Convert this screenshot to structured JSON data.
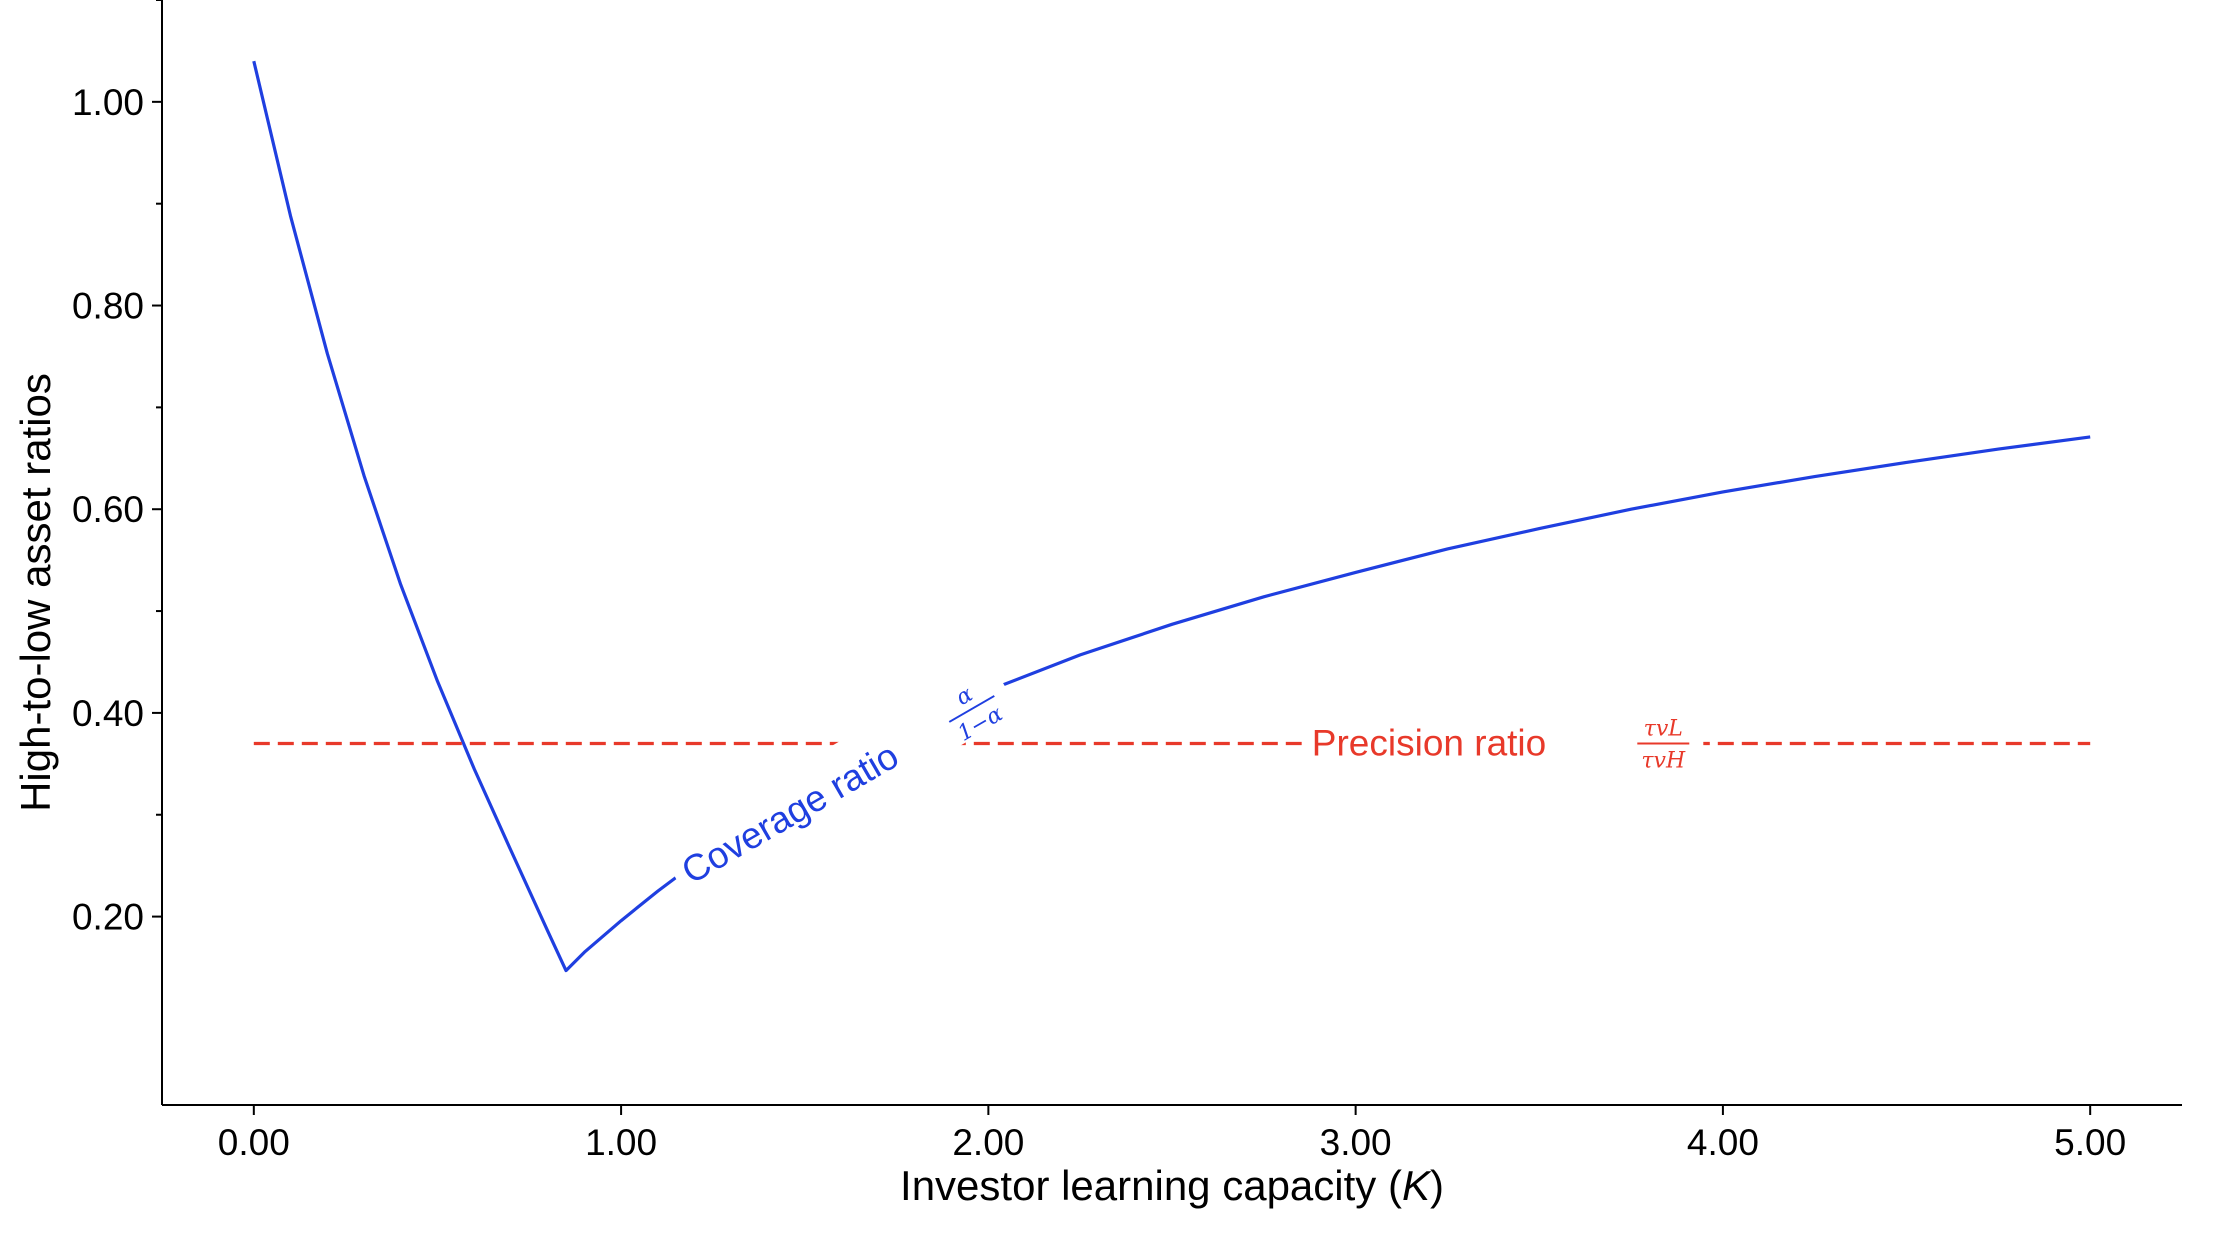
{
  "chart_data": {
    "type": "line",
    "title": "",
    "xlabel": "Investor learning capacity",
    "xlabel_symbol": "K",
    "ylabel": "High-to-low asset ratios",
    "xlim": [
      -0.25,
      5.25
    ],
    "ylim": [
      0.015,
      1.1
    ],
    "x_ticks": [
      0,
      1,
      2,
      3,
      4,
      5
    ],
    "x_tick_labels": [
      "0.00",
      "1.00",
      "2.00",
      "3.00",
      "4.00",
      "5.00"
    ],
    "y_ticks": [
      0.2,
      0.4,
      0.6,
      0.8,
      1.0
    ],
    "y_tick_labels": [
      "0.20",
      "0.40",
      "0.60",
      "0.80",
      "1.00"
    ],
    "y_minor_ticks": [
      0.3,
      0.5,
      0.7,
      0.9,
      1.1
    ],
    "grid": false,
    "legend": "none",
    "series": [
      {
        "key": "coverage",
        "color": "#1f3fe0",
        "dash": "solid",
        "label": {
          "text": "Coverage ratio",
          "frac_num": "α",
          "frac_den": "1−α",
          "x": 1.6,
          "y": 0.33
        },
        "x": [
          0.0,
          0.1,
          0.2,
          0.3,
          0.4,
          0.5,
          0.6,
          0.7,
          0.8,
          0.85,
          0.9,
          1.0,
          1.1,
          1.2,
          1.3,
          1.4,
          1.5,
          1.6,
          1.7,
          1.8,
          1.9,
          2.0,
          2.25,
          2.5,
          2.75,
          3.0,
          3.25,
          3.5,
          3.75,
          4.0,
          4.25,
          4.5,
          4.75,
          5.0
        ],
        "y": [
          1.04,
          0.888,
          0.753,
          0.633,
          0.526,
          0.431,
          0.345,
          0.265,
          0.186,
          0.147,
          0.165,
          0.196,
          0.225,
          0.252,
          0.278,
          0.302,
          0.325,
          0.346,
          0.366,
          0.386,
          0.404,
          0.422,
          0.457,
          0.487,
          0.514,
          0.538,
          0.561,
          0.581,
          0.6,
          0.617,
          0.632,
          0.646,
          0.659,
          0.671
        ]
      },
      {
        "key": "precision",
        "color": "#e8392a",
        "dash": "dashed",
        "label": {
          "text": "Precision ratio",
          "frac_num": "τvL",
          "frac_den": "τvH",
          "x": 3.4,
          "y": 0.37
        },
        "x": [
          0.0,
          5.0
        ],
        "y": [
          0.37,
          0.37
        ]
      }
    ]
  }
}
